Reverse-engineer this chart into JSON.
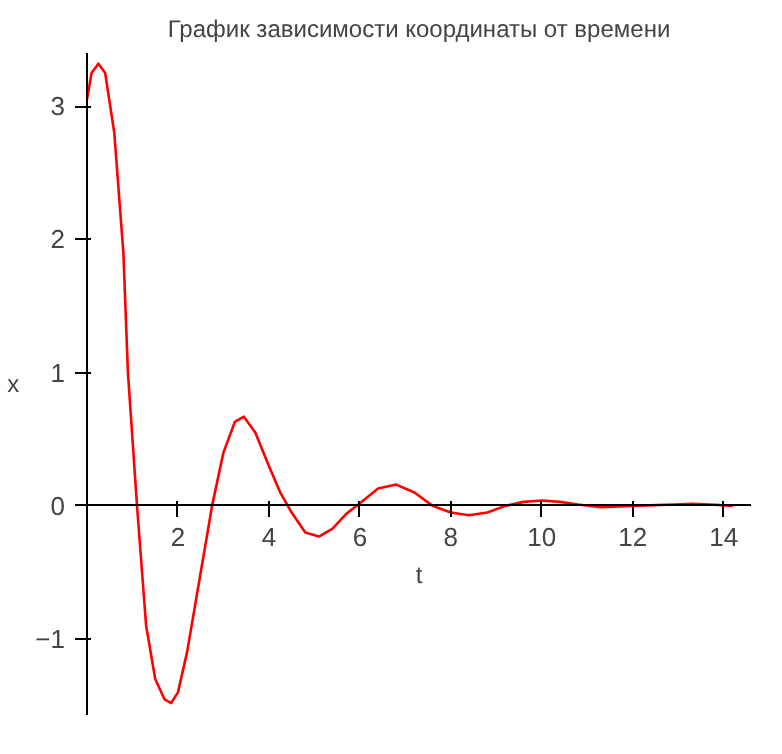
{
  "chart_data": {
    "type": "line",
    "title": "График зависимости координаты от времени",
    "xlabel": "t",
    "ylabel": "x",
    "x": [
      0,
      0.1,
      0.25,
      0.4,
      0.6,
      0.8,
      0.9,
      1.1,
      1.3,
      1.5,
      1.7,
      1.85,
      2.0,
      2.2,
      2.5,
      2.75,
      3.0,
      3.25,
      3.45,
      3.7,
      4.0,
      4.25,
      4.5,
      4.8,
      5.1,
      5.4,
      5.7,
      6.0,
      6.4,
      6.8,
      7.2,
      7.6,
      8.0,
      8.4,
      8.8,
      9.2,
      9.6,
      10.0,
      10.4,
      10.8,
      11.3,
      12.0,
      12.9,
      13.3,
      13.7,
      14.2
    ],
    "series": [
      {
        "color": "#ff0000",
        "values": [
          3.05,
          3.25,
          3.32,
          3.25,
          2.8,
          1.9,
          1.0,
          0.0,
          -0.9,
          -1.3,
          -1.45,
          -1.48,
          -1.4,
          -1.1,
          -0.5,
          0.0,
          0.4,
          0.63,
          0.67,
          0.55,
          0.3,
          0.1,
          -0.05,
          -0.2,
          -0.23,
          -0.17,
          -0.06,
          0.02,
          0.13,
          0.16,
          0.1,
          0.0,
          -0.05,
          -0.07,
          -0.05,
          0.0,
          0.03,
          0.04,
          0.03,
          0.01,
          -0.01,
          0.0,
          0.01,
          0.015,
          0.01,
          0.0
        ]
      }
    ],
    "xlim": [
      0,
      14.6
    ],
    "ylim": [
      -1.57,
      3.4
    ],
    "xticks": [
      2,
      4,
      6,
      8,
      10,
      12,
      14
    ],
    "yticks": [
      -1,
      0,
      1,
      2,
      3
    ],
    "grid": false,
    "line_style": "solid",
    "marker": "none"
  }
}
